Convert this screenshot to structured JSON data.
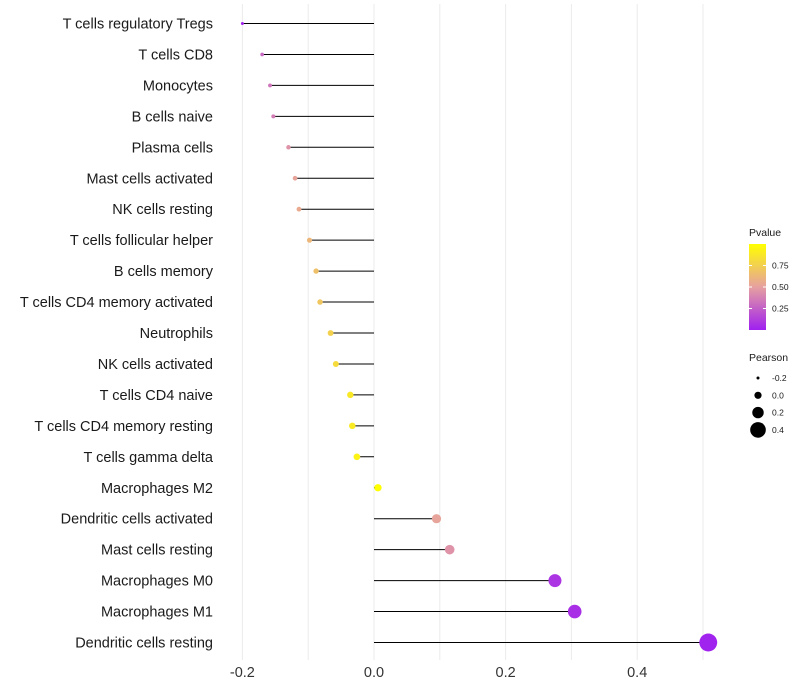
{
  "chart_data": {
    "type": "lollipop",
    "title": "",
    "xlabel": "",
    "ylabel": "",
    "xlim": [
      -0.2,
      0.51
    ],
    "x_ticks": [
      -0.2,
      0.0,
      0.2,
      0.4
    ],
    "x_tick_labels": [
      "-0.2",
      "0.0",
      "0.2",
      "0.4"
    ],
    "grid": "vertical",
    "categories": [
      "T cells regulatory  Tregs",
      "T cells CD8",
      "Monocytes",
      "B cells naive",
      "Plasma cells",
      "Mast cells activated",
      "NK cells resting",
      "T cells follicular helper",
      "B cells memory",
      "T cells CD4 memory activated",
      "Neutrophils",
      "NK cells activated",
      "T cells CD4 naive",
      "T cells CD4 memory resting",
      "T cells gamma delta",
      "Macrophages M2",
      "Dendritic cells activated",
      "Mast cells resting",
      "Macrophages M0",
      "Macrophages M1",
      "Dendritic cells resting"
    ],
    "pearson": [
      -0.2,
      -0.17,
      -0.158,
      -0.153,
      -0.13,
      -0.12,
      -0.114,
      -0.098,
      -0.088,
      -0.082,
      -0.066,
      -0.058,
      -0.036,
      -0.033,
      -0.026,
      0.006,
      0.095,
      0.115,
      0.275,
      0.305,
      0.508
    ],
    "pvalue": [
      0.02,
      0.28,
      0.33,
      0.36,
      0.45,
      0.52,
      0.55,
      0.62,
      0.67,
      0.7,
      0.76,
      0.81,
      0.88,
      0.89,
      0.93,
      1.0,
      0.52,
      0.45,
      0.08,
      0.06,
      0.01
    ],
    "color_legend": {
      "title": "Pvalue",
      "ticks": [
        "0.75",
        "0.50",
        "0.25"
      ],
      "tick_values": [
        0.75,
        0.5,
        0.25
      ],
      "range": [
        0,
        1
      ],
      "low_color": "#a020f0",
      "mid_color": "#e6a0a0",
      "high_color": "#ffff00",
      "position": "right"
    },
    "size_legend": {
      "title": "Pearson",
      "labels": [
        "-0.2",
        "0.0",
        "0.2",
        "0.4"
      ],
      "values": [
        -0.2,
        0.0,
        0.2,
        0.4
      ],
      "position": "right"
    }
  }
}
